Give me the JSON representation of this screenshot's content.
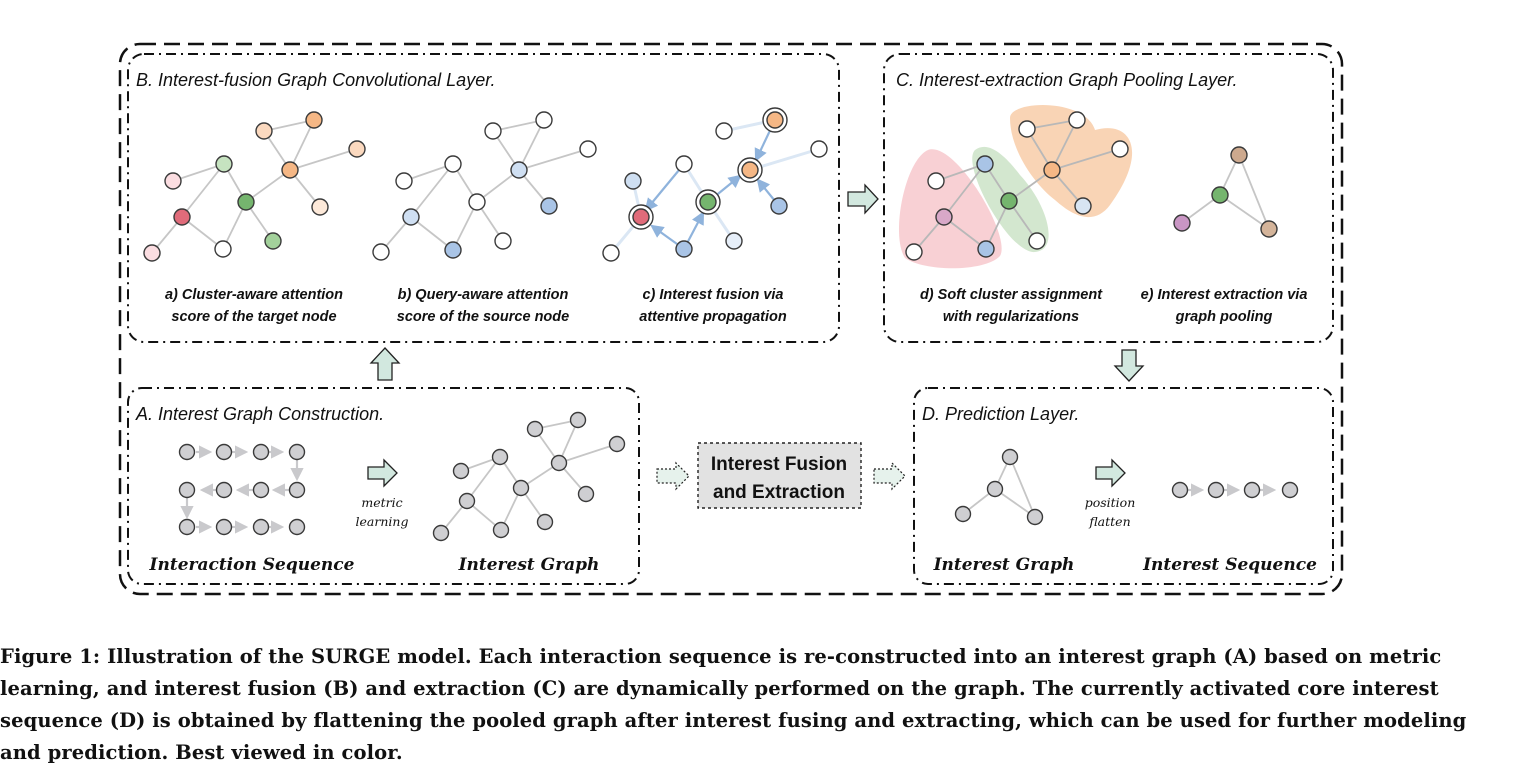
{
  "panels": {
    "b_title": "B. Interest-fusion Graph Convolutional Layer.",
    "c_title": "C. Interest-extraction Graph Pooling Layer.",
    "a_title": "A. Interest Graph Construction.",
    "d_title": "D. Prediction Layer."
  },
  "subcaptions": {
    "a_line1": "a) Cluster-aware attention",
    "a_line2": "score of the target node",
    "b_line1": "b) Query-aware attention",
    "b_line2": "score of the source node",
    "c_line1": "c) Interest fusion via",
    "c_line2": "attentive propagation",
    "d_line1": "d) Soft cluster assignment",
    "d_line2": "with regularizations",
    "e_line1": "e) Interest extraction via",
    "e_line2": "graph pooling"
  },
  "labels": {
    "interaction_sequence": "Interaction Sequence",
    "interest_graph_a": "Interest Graph",
    "metric_1": "metric",
    "metric_2": "learning",
    "central_1": "Interest Fusion",
    "central_2": "and Extraction",
    "interest_graph_d": "Interest Graph",
    "interest_sequence": "Interest Sequence",
    "position_1": "position",
    "position_2": "flatten"
  },
  "caption": "Figure 1: Illustration of the SURGE model. Each interaction sequence is re-constructed into an interest graph (A) based on metric learning, and interest fusion (B) and extraction (C) are dynamically performed on the graph. The currently activated core interest sequence (D) is obtained by flattening the pooled graph after interest fusing and extracting, which can be used for further modeling and prediction. Best viewed in color.",
  "colors": {
    "gray_node": "#cfcfd2",
    "blue_node": "#a9c4e6",
    "orange_node": "#f5b785",
    "green_node": "#75b56e",
    "red_node": "#e06b7a",
    "arrow_fill": "#d2e8df"
  }
}
